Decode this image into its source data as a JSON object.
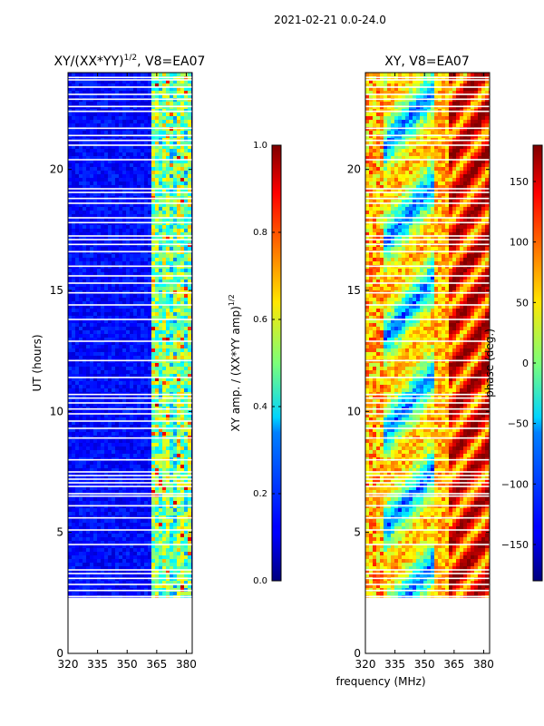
{
  "figure_title": "2021-02-21 0.0-24.0",
  "shared_xlabel": "frequency (MHz)",
  "chart_data": [
    {
      "type": "heatmap",
      "title_main": "XY/(XX*YY)",
      "title_sup": "1/2",
      "title_tail": ", V8=EA07",
      "ylabel": "UT (hours)",
      "xlabel": "frequency (MHz)",
      "xlim": [
        320,
        383
      ],
      "ylim": [
        0,
        24
      ],
      "xticks": [
        320,
        335,
        350,
        365,
        380
      ],
      "yticks": [
        0,
        5,
        10,
        15,
        20
      ],
      "data_region_hours": [
        1.5,
        24.0
      ],
      "gap_band_hours": [
        1.6,
        2.3
      ],
      "high_amp_band_mhz": [
        361,
        381
      ],
      "colorbar": {
        "label_main": "XY amp. / (XX*YY amp)",
        "label_sup": "1/2",
        "range": [
          0.0,
          1.0
        ],
        "ticks": [
          "0.0",
          "0.2",
          "0.4",
          "0.6",
          "0.8",
          "1.0"
        ],
        "colormap": "jet"
      }
    },
    {
      "type": "heatmap",
      "title": "XY, V8=EA07",
      "ylabel": "",
      "xlabel": "frequency (MHz)",
      "xlim": [
        320,
        383
      ],
      "ylim": [
        0,
        24
      ],
      "xticks": [
        320,
        335,
        350,
        365,
        380
      ],
      "yticks": [
        0,
        5,
        10,
        15,
        20
      ],
      "data_region_hours": [
        1.5,
        24.0
      ],
      "gap_band_hours": [
        1.6,
        2.3
      ],
      "colorbar": {
        "label": "phase (deg.)",
        "range": [
          -180,
          180
        ],
        "ticks": [
          "150",
          "100",
          "50",
          "0",
          "−50",
          "−100",
          "−150"
        ],
        "tick_values": [
          150,
          100,
          50,
          0,
          -50,
          -100,
          -150
        ],
        "colormap": "jet"
      }
    }
  ],
  "flagged_rows_hours": [
    1.55,
    2.35,
    2.6,
    2.85,
    3.1,
    3.3,
    3.45,
    4.5,
    5.1,
    5.6,
    6.1,
    6.5,
    6.6,
    6.9,
    7.05,
    7.2,
    7.35,
    7.5,
    8.0,
    8.9,
    9.3,
    9.6,
    9.9,
    10.1,
    10.35,
    10.55,
    10.7,
    11.4,
    12.1,
    12.9,
    13.8,
    14.4,
    14.9,
    15.3,
    15.6,
    16.0,
    16.6,
    16.9,
    17.1,
    17.25,
    17.8,
    18.0,
    18.6,
    18.8,
    19.05,
    19.2,
    20.4,
    21.0,
    21.2,
    21.4,
    21.7,
    22.4,
    22.6,
    22.9,
    23.1,
    23.4,
    23.7,
    23.8
  ]
}
